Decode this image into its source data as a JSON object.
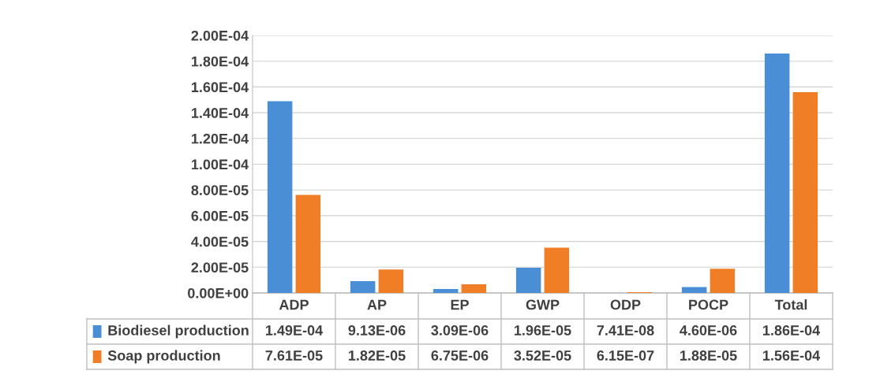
{
  "chart_data": {
    "type": "bar",
    "categories": [
      "ADP",
      "AP",
      "EP",
      "GWP",
      "ODP",
      "POCP",
      "Total"
    ],
    "series": [
      {
        "name": "Biodiesel production",
        "color": "#4a8fd6",
        "values": [
          0.000149,
          9.13e-06,
          3.09e-06,
          1.96e-05,
          7.41e-08,
          4.6e-06,
          0.000186
        ],
        "value_labels": [
          "1.49E-04",
          "9.13E-06",
          "3.09E-06",
          "1.96E-05",
          "7.41E-08",
          "4.60E-06",
          "1.86E-04"
        ]
      },
      {
        "name": "Soap production",
        "color": "#f07e26",
        "values": [
          7.61e-05,
          1.82e-05,
          6.75e-06,
          3.52e-05,
          6.15e-07,
          1.88e-05,
          0.000156
        ],
        "value_labels": [
          "7.61E-05",
          "1.82E-05",
          "6.75E-06",
          "3.52E-05",
          "6.15E-07",
          "1.88E-05",
          "1.56E-04"
        ]
      }
    ],
    "ylim": [
      0,
      0.0002
    ],
    "yticks": [
      {
        "value": 0,
        "label": "0.00E+00"
      },
      {
        "value": 2e-05,
        "label": "2.00E-05"
      },
      {
        "value": 4e-05,
        "label": "4.00E-05"
      },
      {
        "value": 6e-05,
        "label": "6.00E-05"
      },
      {
        "value": 8e-05,
        "label": "8.00E-05"
      },
      {
        "value": 0.0001,
        "label": "1.00E-04"
      },
      {
        "value": 0.00012,
        "label": "1.20E-04"
      },
      {
        "value": 0.00014,
        "label": "1.40E-04"
      },
      {
        "value": 0.00016,
        "label": "1.60E-04"
      },
      {
        "value": 0.00018,
        "label": "1.80E-04"
      },
      {
        "value": 0.0002,
        "label": "2.00E-04"
      }
    ],
    "grid": "y",
    "legend": "bottom left"
  }
}
